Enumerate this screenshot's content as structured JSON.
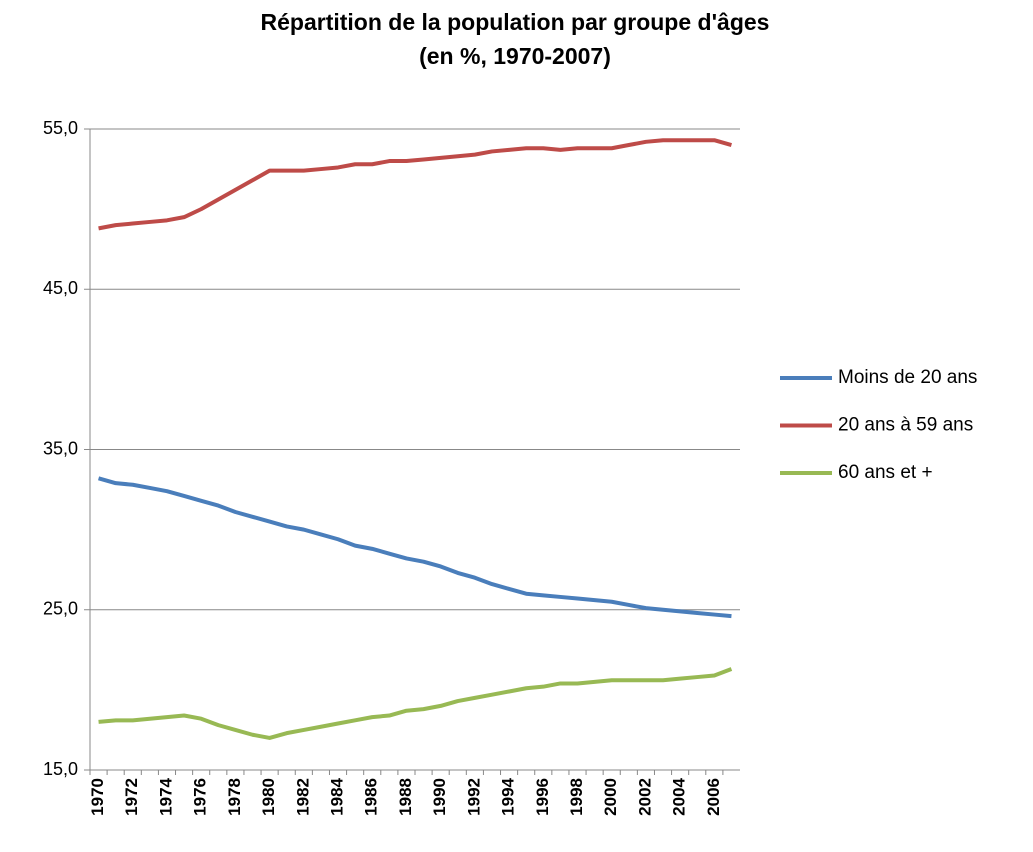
{
  "chart_data": {
    "type": "line",
    "title": [
      "Répartition de la population par groupe d'âges",
      "(en %, 1970-2007)"
    ],
    "categories": [
      "1970",
      null,
      "1972",
      null,
      "1974",
      null,
      "1976",
      null,
      "1978",
      null,
      "1980",
      null,
      "1982",
      null,
      "1984",
      null,
      "1986",
      null,
      "1988",
      null,
      "1990",
      null,
      "1992",
      null,
      "1994",
      null,
      "1996",
      null,
      "1998",
      null,
      "2000",
      null,
      "2002",
      null,
      "2004",
      null,
      "2006",
      null
    ],
    "series": [
      {
        "name": "Moins de 20 ans",
        "color": "#4a7ebb",
        "values": [
          33.2,
          32.9,
          32.8,
          32.6,
          32.4,
          32.1,
          31.8,
          31.5,
          31.1,
          30.8,
          30.5,
          30.2,
          30.0,
          29.7,
          29.4,
          29.0,
          28.8,
          28.5,
          28.2,
          28.0,
          27.7,
          27.3,
          27.0,
          26.6,
          26.3,
          26.0,
          25.9,
          25.8,
          25.7,
          25.6,
          25.5,
          25.3,
          25.1,
          25.0,
          24.9,
          24.8,
          24.7,
          24.6
        ]
      },
      {
        "name": "20 ans à 59 ans",
        "color": "#be4b48",
        "values": [
          48.8,
          49.0,
          49.1,
          49.2,
          49.3,
          49.5,
          50.0,
          50.6,
          51.2,
          51.8,
          52.4,
          52.4,
          52.4,
          52.5,
          52.6,
          52.8,
          52.8,
          53.0,
          53.0,
          53.1,
          53.2,
          53.3,
          53.4,
          53.6,
          53.7,
          53.8,
          53.8,
          53.7,
          53.8,
          53.8,
          53.8,
          54.0,
          54.2,
          54.3,
          54.3,
          54.3,
          54.3,
          54.0
        ]
      },
      {
        "name": "60 ans et +",
        "color": "#98b954",
        "values": [
          18.0,
          18.1,
          18.1,
          18.2,
          18.3,
          18.4,
          18.2,
          17.8,
          17.5,
          17.2,
          17.0,
          17.3,
          17.5,
          17.7,
          17.9,
          18.1,
          18.3,
          18.4,
          18.7,
          18.8,
          19.0,
          19.3,
          19.5,
          19.7,
          19.9,
          20.1,
          20.2,
          20.4,
          20.4,
          20.5,
          20.6,
          20.6,
          20.6,
          20.6,
          20.7,
          20.8,
          20.9,
          21.3
        ]
      }
    ],
    "ylim": [
      15,
      55
    ],
    "yticks": [
      {
        "value": 15,
        "label": "15,0"
      },
      {
        "value": 25,
        "label": "25,0"
      },
      {
        "value": 35,
        "label": "35,0"
      },
      {
        "value": 45,
        "label": "45,0"
      },
      {
        "value": 55,
        "label": "55,0"
      }
    ],
    "grid": true,
    "legend": "right"
  }
}
